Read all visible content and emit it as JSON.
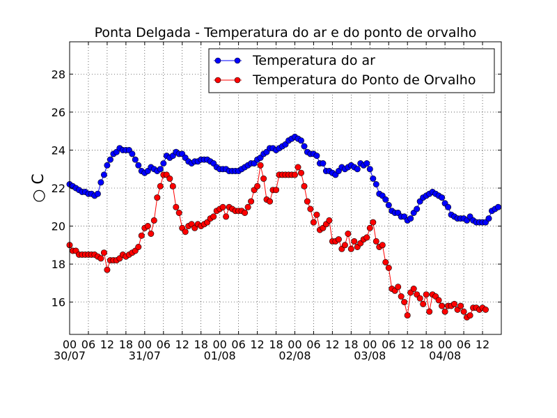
{
  "chart_data": {
    "type": "line",
    "title": "Ponta Delgada - Temperatura do ar e do ponto de orvalho",
    "xlabel": "",
    "ylabel": "○ C",
    "xlim_hours": [
      0,
      138
    ],
    "ylim": [
      14.3,
      29.7
    ],
    "yticks": [
      16,
      18,
      20,
      22,
      24,
      26,
      28
    ],
    "xticks": [
      {
        "hour": 0,
        "label": "00",
        "date": "30/07"
      },
      {
        "hour": 6,
        "label": "06",
        "date": ""
      },
      {
        "hour": 12,
        "label": "12",
        "date": ""
      },
      {
        "hour": 18,
        "label": "18",
        "date": ""
      },
      {
        "hour": 24,
        "label": "00",
        "date": "31/07"
      },
      {
        "hour": 30,
        "label": "06",
        "date": ""
      },
      {
        "hour": 36,
        "label": "12",
        "date": ""
      },
      {
        "hour": 42,
        "label": "18",
        "date": ""
      },
      {
        "hour": 48,
        "label": "00",
        "date": "01/08"
      },
      {
        "hour": 54,
        "label": "06",
        "date": ""
      },
      {
        "hour": 60,
        "label": "12",
        "date": ""
      },
      {
        "hour": 66,
        "label": "18",
        "date": ""
      },
      {
        "hour": 72,
        "label": "00",
        "date": "02/08"
      },
      {
        "hour": 78,
        "label": "06",
        "date": ""
      },
      {
        "hour": 84,
        "label": "12",
        "date": ""
      },
      {
        "hour": 90,
        "label": "18",
        "date": ""
      },
      {
        "hour": 96,
        "label": "00",
        "date": "03/08"
      },
      {
        "hour": 102,
        "label": "06",
        "date": ""
      },
      {
        "hour": 108,
        "label": "12",
        "date": ""
      },
      {
        "hour": 114,
        "label": "18",
        "date": ""
      },
      {
        "hour": 120,
        "label": "00",
        "date": "04/08"
      },
      {
        "hour": 126,
        "label": "06",
        "date": ""
      },
      {
        "hour": 132,
        "label": "12",
        "date": ""
      }
    ],
    "grid": true,
    "legend_position": "top-right",
    "series": [
      {
        "name": "Temperatura do ar",
        "color": "#0000ff",
        "points": [
          [
            0,
            22.2
          ],
          [
            1,
            22.1
          ],
          [
            2,
            22.0
          ],
          [
            3,
            21.9
          ],
          [
            4,
            21.8
          ],
          [
            5,
            21.8
          ],
          [
            6,
            21.7
          ],
          [
            7,
            21.7
          ],
          [
            8,
            21.6
          ],
          [
            9,
            21.7
          ],
          [
            10,
            22.3
          ],
          [
            11,
            22.7
          ],
          [
            12,
            23.2
          ],
          [
            13,
            23.5
          ],
          [
            14,
            23.8
          ],
          [
            15,
            23.9
          ],
          [
            16,
            24.1
          ],
          [
            17,
            24.0
          ],
          [
            18,
            24.0
          ],
          [
            19,
            24.0
          ],
          [
            20,
            23.8
          ],
          [
            21,
            23.5
          ],
          [
            22,
            23.2
          ],
          [
            23,
            22.9
          ],
          [
            24,
            22.8
          ],
          [
            25,
            22.9
          ],
          [
            26,
            23.1
          ],
          [
            27,
            23.0
          ],
          [
            28,
            22.9
          ],
          [
            29,
            23.0
          ],
          [
            30,
            23.3
          ],
          [
            31,
            23.7
          ],
          [
            32,
            23.6
          ],
          [
            33,
            23.7
          ],
          [
            34,
            23.9
          ],
          [
            35,
            23.8
          ],
          [
            36,
            23.8
          ],
          [
            37,
            23.6
          ],
          [
            38,
            23.4
          ],
          [
            39,
            23.3
          ],
          [
            40,
            23.4
          ],
          [
            41,
            23.4
          ],
          [
            42,
            23.5
          ],
          [
            43,
            23.5
          ],
          [
            44,
            23.5
          ],
          [
            45,
            23.4
          ],
          [
            46,
            23.3
          ],
          [
            47,
            23.1
          ],
          [
            48,
            23.0
          ],
          [
            49,
            23.0
          ],
          [
            50,
            23.0
          ],
          [
            51,
            22.9
          ],
          [
            52,
            22.9
          ],
          [
            53,
            22.9
          ],
          [
            54,
            22.9
          ],
          [
            55,
            23.0
          ],
          [
            56,
            23.1
          ],
          [
            57,
            23.2
          ],
          [
            58,
            23.3
          ],
          [
            59,
            23.3
          ],
          [
            60,
            23.5
          ],
          [
            61,
            23.6
          ],
          [
            62,
            23.8
          ],
          [
            63,
            23.9
          ],
          [
            64,
            24.1
          ],
          [
            65,
            24.1
          ],
          [
            66,
            24.0
          ],
          [
            67,
            24.1
          ],
          [
            68,
            24.2
          ],
          [
            69,
            24.3
          ],
          [
            70,
            24.5
          ],
          [
            71,
            24.6
          ],
          [
            72,
            24.7
          ],
          [
            73,
            24.6
          ],
          [
            74,
            24.5
          ],
          [
            75,
            24.2
          ],
          [
            76,
            23.9
          ],
          [
            77,
            23.8
          ],
          [
            78,
            23.8
          ],
          [
            79,
            23.7
          ],
          [
            80,
            23.3
          ],
          [
            81,
            23.3
          ],
          [
            82,
            22.9
          ],
          [
            83,
            22.9
          ],
          [
            84,
            22.8
          ],
          [
            85,
            22.7
          ],
          [
            86,
            22.9
          ],
          [
            87,
            23.1
          ],
          [
            88,
            23.0
          ],
          [
            89,
            23.1
          ],
          [
            90,
            23.2
          ],
          [
            91,
            23.1
          ],
          [
            92,
            23.0
          ],
          [
            93,
            23.3
          ],
          [
            94,
            23.2
          ],
          [
            95,
            23.3
          ],
          [
            96,
            23.0
          ],
          [
            97,
            22.5
          ],
          [
            98,
            22.2
          ],
          [
            99,
            21.7
          ],
          [
            100,
            21.6
          ],
          [
            101,
            21.4
          ],
          [
            102,
            21.1
          ],
          [
            103,
            20.8
          ],
          [
            104,
            20.7
          ],
          [
            105,
            20.7
          ],
          [
            106,
            20.5
          ],
          [
            107,
            20.5
          ],
          [
            108,
            20.3
          ],
          [
            109,
            20.4
          ],
          [
            110,
            20.7
          ],
          [
            111,
            20.9
          ],
          [
            112,
            21.3
          ],
          [
            113,
            21.5
          ],
          [
            114,
            21.6
          ],
          [
            115,
            21.7
          ],
          [
            116,
            21.8
          ],
          [
            117,
            21.7
          ],
          [
            118,
            21.6
          ],
          [
            119,
            21.5
          ],
          [
            120,
            21.2
          ],
          [
            121,
            21.0
          ],
          [
            122,
            20.6
          ],
          [
            123,
            20.5
          ],
          [
            124,
            20.4
          ],
          [
            125,
            20.4
          ],
          [
            126,
            20.4
          ],
          [
            127,
            20.3
          ],
          [
            128,
            20.5
          ],
          [
            129,
            20.3
          ],
          [
            130,
            20.2
          ],
          [
            131,
            20.2
          ],
          [
            132,
            20.2
          ],
          [
            133,
            20.2
          ],
          [
            134,
            20.4
          ],
          [
            135,
            20.8
          ],
          [
            136,
            20.9
          ],
          [
            137,
            21.0
          ]
        ]
      },
      {
        "name": "Temperatura do Ponto de Orvalho",
        "color": "#ff0000",
        "points": [
          [
            0,
            19.0
          ],
          [
            1,
            18.7
          ],
          [
            2,
            18.7
          ],
          [
            3,
            18.5
          ],
          [
            4,
            18.5
          ],
          [
            5,
            18.5
          ],
          [
            6,
            18.5
          ],
          [
            7,
            18.5
          ],
          [
            8,
            18.5
          ],
          [
            9,
            18.4
          ],
          [
            10,
            18.3
          ],
          [
            11,
            18.6
          ],
          [
            12,
            17.7
          ],
          [
            13,
            18.2
          ],
          [
            14,
            18.2
          ],
          [
            15,
            18.2
          ],
          [
            16,
            18.3
          ],
          [
            17,
            18.5
          ],
          [
            18,
            18.4
          ],
          [
            19,
            18.5
          ],
          [
            20,
            18.6
          ],
          [
            21,
            18.7
          ],
          [
            22,
            18.9
          ],
          [
            23,
            19.5
          ],
          [
            24,
            19.9
          ],
          [
            25,
            20.0
          ],
          [
            26,
            19.6
          ],
          [
            27,
            20.3
          ],
          [
            28,
            21.5
          ],
          [
            29,
            22.1
          ],
          [
            30,
            22.7
          ],
          [
            31,
            22.7
          ],
          [
            32,
            22.5
          ],
          [
            33,
            22.1
          ],
          [
            34,
            21.0
          ],
          [
            35,
            20.7
          ],
          [
            36,
            19.9
          ],
          [
            37,
            19.7
          ],
          [
            38,
            20.0
          ],
          [
            39,
            20.1
          ],
          [
            40,
            19.9
          ],
          [
            41,
            20.1
          ],
          [
            42,
            20.0
          ],
          [
            43,
            20.1
          ],
          [
            44,
            20.2
          ],
          [
            45,
            20.4
          ],
          [
            46,
            20.5
          ],
          [
            47,
            20.8
          ],
          [
            48,
            20.9
          ],
          [
            49,
            21.0
          ],
          [
            50,
            20.5
          ],
          [
            51,
            21.0
          ],
          [
            52,
            20.9
          ],
          [
            53,
            20.8
          ],
          [
            54,
            20.8
          ],
          [
            55,
            20.8
          ],
          [
            56,
            20.7
          ],
          [
            57,
            21.0
          ],
          [
            58,
            21.3
          ],
          [
            59,
            21.9
          ],
          [
            60,
            22.1
          ],
          [
            61,
            23.2
          ],
          [
            62,
            22.5
          ],
          [
            63,
            21.4
          ],
          [
            64,
            21.3
          ],
          [
            65,
            21.9
          ],
          [
            66,
            21.9
          ],
          [
            67,
            22.7
          ],
          [
            68,
            22.7
          ],
          [
            69,
            22.7
          ],
          [
            70,
            22.7
          ],
          [
            71,
            22.7
          ],
          [
            72,
            22.7
          ],
          [
            73,
            23.1
          ],
          [
            74,
            22.8
          ],
          [
            75,
            22.1
          ],
          [
            76,
            21.3
          ],
          [
            77,
            20.9
          ],
          [
            78,
            20.2
          ],
          [
            79,
            20.6
          ],
          [
            80,
            19.8
          ],
          [
            81,
            19.9
          ],
          [
            82,
            20.1
          ],
          [
            83,
            20.3
          ],
          [
            84,
            19.2
          ],
          [
            85,
            19.2
          ],
          [
            86,
            19.3
          ],
          [
            87,
            18.8
          ],
          [
            88,
            19.0
          ],
          [
            89,
            19.6
          ],
          [
            90,
            18.8
          ],
          [
            91,
            19.2
          ],
          [
            92,
            18.9
          ],
          [
            93,
            19.1
          ],
          [
            94,
            19.3
          ],
          [
            95,
            19.4
          ],
          [
            96,
            19.9
          ],
          [
            97,
            20.2
          ],
          [
            98,
            19.2
          ],
          [
            99,
            18.9
          ],
          [
            100,
            19.0
          ],
          [
            101,
            18.1
          ],
          [
            102,
            17.8
          ],
          [
            103,
            16.7
          ],
          [
            104,
            16.6
          ],
          [
            105,
            16.8
          ],
          [
            106,
            16.3
          ],
          [
            107,
            16.0
          ],
          [
            108,
            15.3
          ],
          [
            109,
            16.5
          ],
          [
            110,
            16.7
          ],
          [
            111,
            16.4
          ],
          [
            112,
            16.2
          ],
          [
            113,
            15.9
          ],
          [
            114,
            16.4
          ],
          [
            115,
            15.5
          ],
          [
            116,
            16.4
          ],
          [
            117,
            16.3
          ],
          [
            118,
            16.1
          ],
          [
            119,
            15.8
          ],
          [
            120,
            15.5
          ],
          [
            121,
            15.8
          ],
          [
            122,
            15.8
          ],
          [
            123,
            15.9
          ],
          [
            124,
            15.6
          ],
          [
            125,
            15.8
          ],
          [
            126,
            15.5
          ],
          [
            127,
            15.2
          ],
          [
            128,
            15.3
          ],
          [
            129,
            15.7
          ],
          [
            130,
            15.7
          ],
          [
            131,
            15.6
          ],
          [
            132,
            15.7
          ],
          [
            133,
            15.6
          ]
        ]
      }
    ]
  }
}
